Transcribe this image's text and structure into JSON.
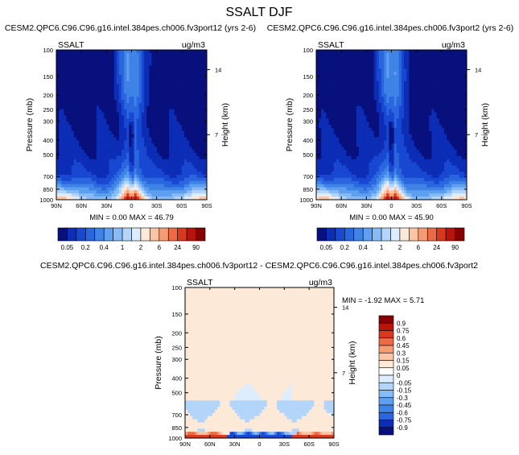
{
  "figure_title": "SSALT DJF",
  "colors": {
    "abs_scale": [
      "#08107e",
      "#0c2db5",
      "#1848d2",
      "#2a66de",
      "#3f83e6",
      "#5d9ff0",
      "#86bbf6",
      "#b3d5fa",
      "#deedfd",
      "#fde9d7",
      "#fbc5a5",
      "#f59c74",
      "#ec6b46",
      "#d9381d",
      "#b8140b",
      "#860004"
    ],
    "diff_scale": [
      "#08107e",
      "#0c2db5",
      "#1848d2",
      "#2a66de",
      "#3f83e6",
      "#5d9ff0",
      "#86bbf6",
      "#b3d5fa",
      "#deedfd",
      "#ffffff",
      "#fde9d7",
      "#fbc5a5",
      "#f59c74",
      "#ec6b46",
      "#d9381d",
      "#b8140b",
      "#860004"
    ]
  },
  "chart_data": [
    {
      "type": "heatmap",
      "title": "CESM2.QPC6.C96.C96.g16.intel.384pes.ch006.fv3port12 (yrs 2-6)",
      "variable": "SSALT",
      "units": "ug/m3",
      "ylabel": "Pressure (mb)",
      "ylabel_right": "Height (km)",
      "x_ticks": [
        "90N",
        "60N",
        "30N",
        "0",
        "30S",
        "60S",
        "90S"
      ],
      "x_values": [
        90,
        60,
        30,
        0,
        -30,
        -60,
        -90
      ],
      "y_ticks": [
        100,
        150,
        200,
        250,
        300,
        400,
        500,
        700,
        850,
        1000
      ],
      "y_right_ticks": [
        14,
        7
      ],
      "ylim": [
        100,
        1000
      ],
      "y_scale": "log",
      "stats_text": "MIN =   0.00  MAX =  46.79",
      "min": 0.0,
      "max": 46.79
    },
    {
      "type": "heatmap",
      "title": "CESM2.QPC6.C96.C96.g16.intel.384pes.ch006.fv3port2 (yrs 2-6)",
      "variable": "SSALT",
      "units": "ug/m3",
      "ylabel": "Pressure (mb)",
      "ylabel_right": "Height (km)",
      "x_ticks": [
        "90N",
        "60N",
        "30N",
        "0",
        "30S",
        "60S",
        "90S"
      ],
      "x_values": [
        90,
        60,
        30,
        0,
        -30,
        -60,
        -90
      ],
      "y_ticks": [
        100,
        150,
        200,
        250,
        300,
        400,
        500,
        700,
        850,
        1000
      ],
      "y_right_ticks": [
        14,
        7
      ],
      "ylim": [
        100,
        1000
      ],
      "y_scale": "log",
      "stats_text": "MIN =   0.00  MAX =  45.90",
      "min": 0.0,
      "max": 45.9
    },
    {
      "type": "heatmap",
      "title": "CESM2.QPC6.C96.C96.g16.intel.384pes.ch006.fv3port12 - CESM2.QPC6.C96.C96.g16.intel.384pes.ch006.fv3port2",
      "variable": "SSALT",
      "units": "ug/m3",
      "ylabel": "Pressure (mb)",
      "ylabel_right": "Height (km)",
      "x_ticks": [
        "90N",
        "60N",
        "30N",
        "0",
        "30S",
        "60S",
        "90S"
      ],
      "x_values": [
        90,
        60,
        30,
        0,
        -30,
        -60,
        -90
      ],
      "y_ticks": [
        100,
        150,
        200,
        250,
        300,
        400,
        500,
        700,
        850,
        1000
      ],
      "y_right_ticks": [
        14,
        7
      ],
      "ylim": [
        100,
        1000
      ],
      "y_scale": "log",
      "stats_text": "MIN =  -1.92  MAX =   5.71",
      "min": -1.92,
      "max": 5.71
    }
  ],
  "colorbars": {
    "absolute": {
      "orientation": "horizontal",
      "shown_labels": [
        "0.05",
        "0.2",
        "0.4",
        "1",
        "2",
        "6",
        "24",
        "90"
      ]
    },
    "difference": {
      "orientation": "vertical",
      "labels": [
        "0.9",
        "0.75",
        "0.6",
        "0.45",
        "0.3",
        "0.15",
        "0.05",
        "0",
        "-0.05",
        "-0.15",
        "-0.3",
        "-0.45",
        "-0.6",
        "-0.75",
        "-0.9"
      ]
    }
  }
}
